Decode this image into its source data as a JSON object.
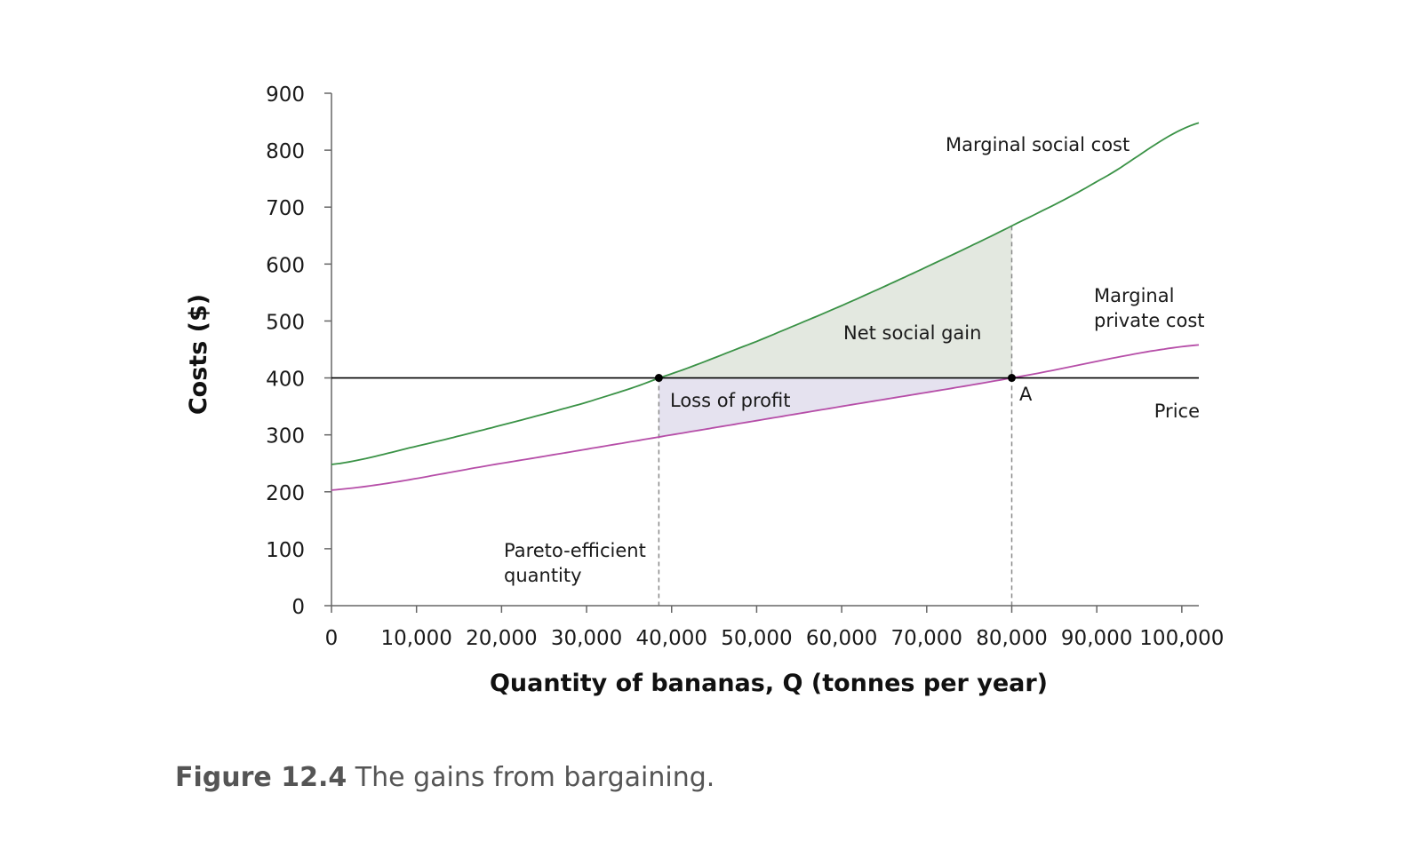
{
  "chart_data": {
    "type": "line",
    "xlabel": "Quantity of bananas, Q (tonnes per year)",
    "ylabel": "Costs ($)",
    "xlim": [
      0,
      102000
    ],
    "ylim": [
      0,
      900
    ],
    "x_ticks": [
      0,
      10000,
      20000,
      30000,
      40000,
      50000,
      60000,
      70000,
      80000,
      90000,
      100000
    ],
    "x_tick_labels": [
      "0",
      "10,000",
      "20,000",
      "30,000",
      "40,000",
      "50,000",
      "60,000",
      "70,000",
      "80,000",
      "90,000",
      "100,000"
    ],
    "y_ticks": [
      0,
      100,
      200,
      300,
      400,
      500,
      600,
      700,
      800,
      900
    ],
    "y_tick_labels": [
      "0",
      "100",
      "200",
      "300",
      "400",
      "500",
      "600",
      "700",
      "800",
      "900"
    ],
    "grid": false,
    "series": [
      {
        "name": "Marginal social cost",
        "color": "#3a9246",
        "x": [
          0,
          10000,
          20000,
          30000,
          38500,
          50000,
          60000,
          70000,
          80000,
          90000,
          102000
        ],
        "values": [
          248,
          280,
          317,
          357,
          400,
          464,
          527,
          595,
          667,
          745,
          848
        ]
      },
      {
        "name": "Marginal private cost",
        "color": "#b64ea8",
        "x": [
          0,
          20000,
          40000,
          60000,
          80000,
          102000
        ],
        "values": [
          203,
          250,
          300,
          350,
          400,
          458
        ]
      },
      {
        "name": "Price",
        "color": "#000000",
        "x": [
          0,
          102000
        ],
        "values": [
          400,
          400
        ]
      }
    ],
    "points": [
      {
        "x": 38500,
        "y": 400,
        "label": ""
      },
      {
        "x": 80000,
        "y": 400,
        "label": "A"
      }
    ],
    "regions": [
      {
        "label": "Net social gain",
        "color": "#e3e8e0",
        "x_from": 38500,
        "x_to": 80000,
        "between": [
          "Price",
          "Marginal social cost"
        ]
      },
      {
        "label": "Loss of profit",
        "color": "#e5e2ef",
        "x_from": 38500,
        "x_to": 80000,
        "between": [
          "Marginal private cost",
          "Price"
        ]
      }
    ],
    "vertical_lines": [
      {
        "x": 38500,
        "label": [
          "Pareto-efficient",
          "quantity"
        ]
      },
      {
        "x": 80000,
        "label": ""
      }
    ],
    "labels": {
      "msc": "Marginal social cost",
      "mpc": [
        "Marginal",
        "private cost"
      ],
      "price": "Price",
      "net_social_gain": "Net social gain",
      "loss_of_profit": "Loss of profit",
      "point_a": "A"
    }
  },
  "caption": {
    "label": "Figure 12.4",
    "text": " The gains from bargaining."
  }
}
